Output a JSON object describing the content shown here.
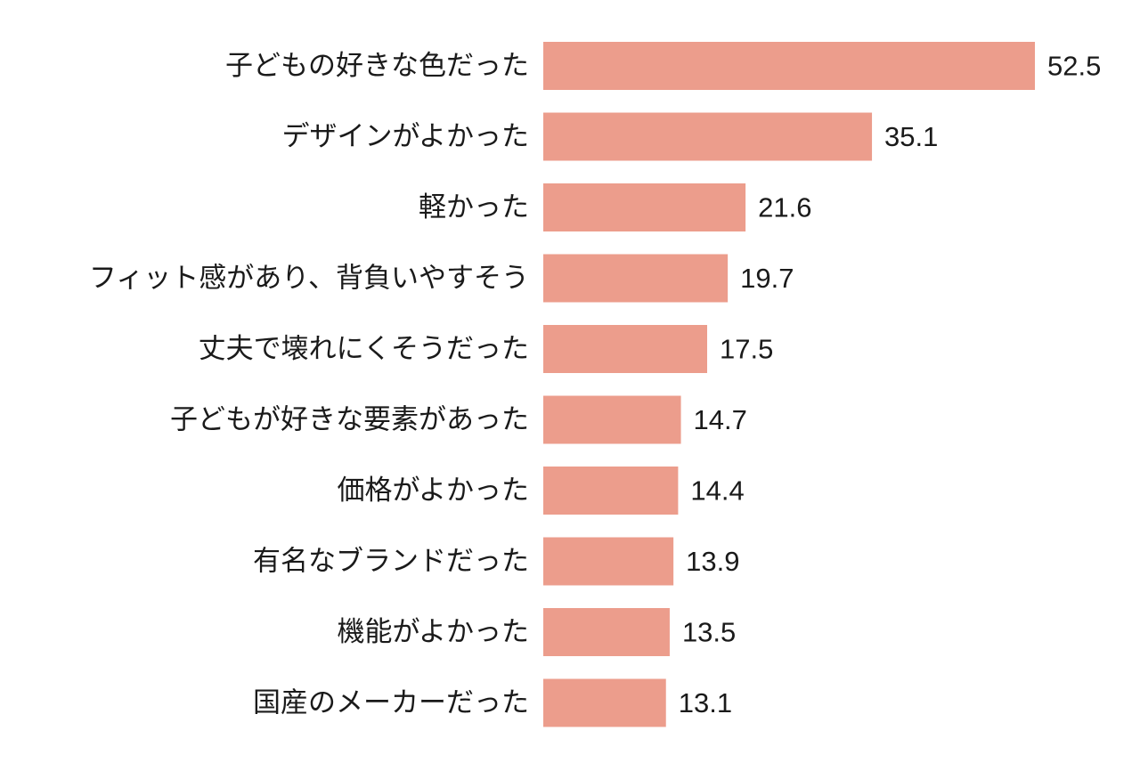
{
  "chart_data": {
    "type": "bar",
    "orientation": "horizontal",
    "title": "",
    "xlabel": "",
    "ylabel": "",
    "categories": [
      "子どもの好きな色だった",
      "デザインがよかった",
      "軽かった",
      "フィット感があり、背負いやすそう",
      "丈夫で壊れにくそうだった",
      "子どもが好きな要素があった",
      "価格がよかった",
      "有名なブランドだった",
      "機能がよかった",
      "国産のメーカーだった"
    ],
    "values": [
      52.5,
      35.1,
      21.6,
      19.7,
      17.5,
      14.7,
      14.4,
      13.9,
      13.5,
      13.1
    ],
    "value_labels": [
      "52.5",
      "35.1",
      "21.6",
      "19.7",
      "17.5",
      "14.7",
      "14.4",
      "13.9",
      "13.5",
      "13.1"
    ],
    "xlim": [
      0,
      52.5
    ],
    "grid": false,
    "legend": "none",
    "bar_color": "#ec9d8c"
  }
}
